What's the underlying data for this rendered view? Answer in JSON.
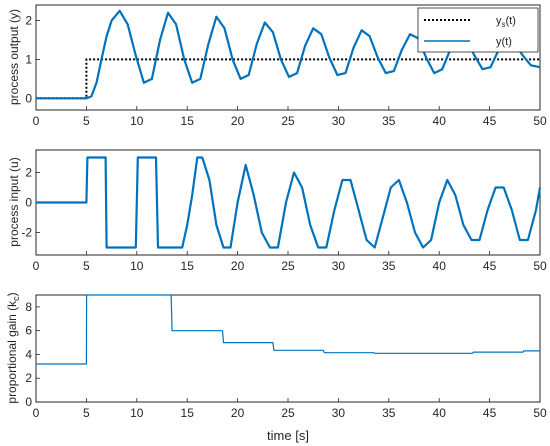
{
  "chart_data": [
    {
      "type": "line",
      "ylabel": "process output (y)",
      "xlim": [
        0,
        50
      ],
      "ylim": [
        -0.3,
        2.4
      ],
      "xticks": [
        "0",
        "5",
        "10",
        "15",
        "20",
        "25",
        "30",
        "35",
        "40",
        "45",
        "50"
      ],
      "yticks": [
        "0",
        "1",
        "2"
      ],
      "legend": "top-right",
      "series": [
        {
          "name": "y_s(t)",
          "style": "dotted",
          "color": "#000000",
          "x": [
            0,
            5,
            5,
            50
          ],
          "y": [
            0,
            0,
            1,
            1
          ]
        },
        {
          "name": "y(t)",
          "style": "solid",
          "color": "#0072BD",
          "x": [
            0,
            4.5,
            5.0,
            5.5,
            6.0,
            6.5,
            7.0,
            7.5,
            8.3,
            9.1,
            9.9,
            10.7,
            11.5,
            12.3,
            13.1,
            13.9,
            14.7,
            15.5,
            16.3,
            17.1,
            17.9,
            18.7,
            19.5,
            20.3,
            21.1,
            21.9,
            22.7,
            23.5,
            24.3,
            25.1,
            25.9,
            26.7,
            27.5,
            28.3,
            29.1,
            29.9,
            30.7,
            31.5,
            32.3,
            33.1,
            33.9,
            34.7,
            35.5,
            36.3,
            37.1,
            37.9,
            38.7,
            39.5,
            40.3,
            41.1,
            41.9,
            42.7,
            43.5,
            44.3,
            45.1,
            45.9,
            46.7,
            47.5,
            48.3,
            49.1,
            50
          ],
          "y": [
            0,
            0,
            0,
            0.05,
            0.4,
            1.0,
            1.6,
            2.0,
            2.25,
            1.9,
            1.1,
            0.4,
            0.5,
            1.5,
            2.2,
            1.9,
            1.0,
            0.4,
            0.5,
            1.4,
            2.1,
            1.8,
            1.0,
            0.5,
            0.6,
            1.4,
            1.95,
            1.7,
            1.0,
            0.55,
            0.65,
            1.35,
            1.8,
            1.65,
            1.05,
            0.6,
            0.65,
            1.3,
            1.75,
            1.6,
            1.05,
            0.65,
            0.7,
            1.25,
            1.65,
            1.55,
            1.05,
            0.65,
            0.75,
            1.25,
            1.6,
            1.5,
            1.1,
            0.75,
            0.8,
            1.25,
            1.5,
            1.4,
            1.1,
            0.85,
            0.8
          ]
        }
      ]
    },
    {
      "type": "line",
      "ylabel": "process input (u)",
      "xlim": [
        0,
        50
      ],
      "ylim": [
        -3.5,
        3.5
      ],
      "xticks": [
        "0",
        "5",
        "10",
        "15",
        "20",
        "25",
        "30",
        "35",
        "40",
        "45",
        "50"
      ],
      "yticks": [
        "-2",
        "0",
        "2"
      ],
      "series": [
        {
          "name": "",
          "style": "solid",
          "color": "#0072BD",
          "x": [
            0,
            5,
            5.1,
            6.9,
            7.0,
            9.9,
            10.0,
            10.1,
            11.9,
            12.0,
            12.1,
            14.5,
            15.0,
            15.5,
            16.0,
            16.5,
            17.2,
            17.9,
            18.6,
            19.3,
            20.0,
            20.8,
            21.6,
            22.4,
            23.2,
            24.0,
            24.8,
            25.6,
            26.4,
            27.2,
            28.0,
            28.8,
            29.6,
            30.4,
            31.2,
            32.0,
            32.8,
            33.6,
            34.4,
            35.2,
            36.0,
            36.8,
            37.6,
            38.4,
            39.2,
            40.0,
            40.8,
            41.6,
            42.4,
            43.2,
            44.0,
            44.8,
            45.6,
            46.4,
            47.2,
            48.0,
            48.8,
            49.6,
            50
          ],
          "y": [
            0,
            0,
            3,
            3,
            -3,
            -3,
            0,
            3,
            3,
            0,
            -3,
            -3,
            -1.5,
            0.5,
            3,
            3,
            1.5,
            -1.5,
            -3,
            -3,
            0,
            2.5,
            0.5,
            -2,
            -3,
            -3,
            0,
            2,
            1,
            -1.5,
            -3,
            -3,
            -0.5,
            1.5,
            1.5,
            -0.5,
            -2.5,
            -3,
            -1,
            1,
            1.5,
            0,
            -2,
            -3,
            -2.5,
            0,
            1.5,
            0.5,
            -1.5,
            -2.5,
            -2.5,
            -0.5,
            1,
            1,
            -0.5,
            -2.5,
            -2.5,
            -0.5,
            1
          ]
        }
      ]
    },
    {
      "type": "line",
      "ylabel": "proportional gain (k_c)",
      "xlabel": "time [s]",
      "xlim": [
        0,
        50
      ],
      "ylim": [
        0,
        9
      ],
      "xticks": [
        "0",
        "5",
        "10",
        "15",
        "20",
        "25",
        "30",
        "35",
        "40",
        "45",
        "50"
      ],
      "yticks": [
        "0",
        "2",
        "4",
        "6",
        "8"
      ],
      "series": [
        {
          "name": "",
          "style": "solid",
          "color": "#0072BD",
          "x": [
            0,
            5,
            5.02,
            13.4,
            13.5,
            18.5,
            18.6,
            23.5,
            23.6,
            28.5,
            28.6,
            33.5,
            33.6,
            38.5,
            38.6,
            43.3,
            43.4,
            48.3,
            48.4,
            50
          ],
          "y": [
            3.2,
            3.2,
            9,
            9,
            6.0,
            6.0,
            5.0,
            5.0,
            4.35,
            4.35,
            4.15,
            4.15,
            4.1,
            4.1,
            4.1,
            4.1,
            4.2,
            4.2,
            4.3,
            4.3
          ]
        }
      ]
    }
  ]
}
